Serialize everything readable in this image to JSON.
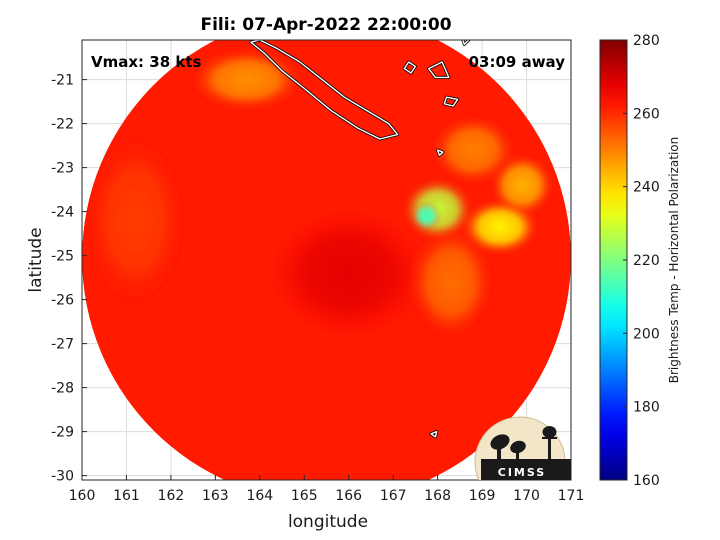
{
  "chart_data": {
    "type": "heatmap",
    "title": "Fili: 07-Apr-2022 22:00:00",
    "xlabel": "longitude",
    "ylabel": "latitude",
    "xlim": [
      160,
      171
    ],
    "ylim": [
      -30.1,
      -20.1
    ],
    "xticks": [
      "160",
      "161",
      "162",
      "163",
      "164",
      "165",
      "166",
      "167",
      "168",
      "169",
      "170",
      "171"
    ],
    "yticks": [
      "-21",
      "-22",
      "-23",
      "-24",
      "-25",
      "-26",
      "-27",
      "-28",
      "-29",
      "-30"
    ],
    "grid": true,
    "annotations": {
      "vmax": "Vmax: 38 kts",
      "time_away": "03:09 away"
    },
    "swath": {
      "center_lon": 165.5,
      "center_lat": -25.05,
      "radius_lon": 5.5
    },
    "colorbar": {
      "label": "Brightness Temp - Horizontal Polarization",
      "range": [
        160,
        280
      ],
      "ticks": [
        "160",
        "180",
        "200",
        "220",
        "240",
        "260",
        "280"
      ],
      "colormap": "jet"
    },
    "background_value": 262,
    "features": [
      {
        "lon": 168.0,
        "lat": -23.95,
        "value": 228,
        "sigma_lon": 0.5,
        "sigma_lat": 0.45
      },
      {
        "lon": 167.75,
        "lat": -24.1,
        "value": 212,
        "sigma_lon": 0.2,
        "sigma_lat": 0.2
      },
      {
        "lon": 169.4,
        "lat": -24.35,
        "value": 236,
        "sigma_lon": 0.55,
        "sigma_lat": 0.4
      },
      {
        "lon": 169.9,
        "lat": -23.4,
        "value": 244,
        "sigma_lon": 0.45,
        "sigma_lat": 0.45
      },
      {
        "lon": 163.7,
        "lat": -21.0,
        "value": 248,
        "sigma_lon": 0.8,
        "sigma_lat": 0.45
      },
      {
        "lon": 168.8,
        "lat": -22.6,
        "value": 250,
        "sigma_lon": 0.6,
        "sigma_lat": 0.5
      },
      {
        "lon": 166.0,
        "lat": -25.4,
        "value": 268,
        "sigma_lon": 1.1,
        "sigma_lat": 0.9
      },
      {
        "lon": 168.3,
        "lat": -25.6,
        "value": 252,
        "sigma_lon": 0.6,
        "sigma_lat": 0.8
      },
      {
        "lon": 161.2,
        "lat": -24.2,
        "value": 258,
        "sigma_lon": 0.7,
        "sigma_lat": 1.2
      }
    ],
    "coastlines": [
      [
        [
          164.0,
          -20.1
        ],
        [
          164.4,
          -20.3
        ],
        [
          164.9,
          -20.6
        ],
        [
          165.4,
          -21.0
        ],
        [
          165.9,
          -21.4
        ],
        [
          166.4,
          -21.7
        ],
        [
          166.9,
          -22.0
        ],
        [
          167.1,
          -22.25
        ],
        [
          166.7,
          -22.35
        ],
        [
          166.2,
          -22.1
        ],
        [
          165.6,
          -21.7
        ],
        [
          165.0,
          -21.2
        ],
        [
          164.5,
          -20.8
        ],
        [
          164.1,
          -20.4
        ],
        [
          163.8,
          -20.15
        ]
      ],
      [
        [
          167.35,
          -20.6
        ],
        [
          167.5,
          -20.7
        ],
        [
          167.4,
          -20.85
        ],
        [
          167.25,
          -20.75
        ]
      ],
      [
        [
          167.8,
          -20.75
        ],
        [
          168.1,
          -20.6
        ],
        [
          168.25,
          -20.95
        ],
        [
          167.95,
          -20.95
        ]
      ],
      [
        [
          168.2,
          -21.4
        ],
        [
          168.45,
          -21.45
        ],
        [
          168.35,
          -21.6
        ],
        [
          168.15,
          -21.55
        ]
      ],
      [
        [
          168.55,
          -20.05
        ],
        [
          168.7,
          -20.1
        ],
        [
          168.6,
          -20.2
        ]
      ],
      [
        [
          168.0,
          -22.6
        ],
        [
          168.12,
          -22.65
        ],
        [
          168.04,
          -22.72
        ]
      ],
      [
        [
          167.85,
          -29.05
        ],
        [
          167.98,
          -29.0
        ],
        [
          167.95,
          -29.12
        ]
      ]
    ]
  },
  "logo": {
    "text": "CIMSS"
  }
}
